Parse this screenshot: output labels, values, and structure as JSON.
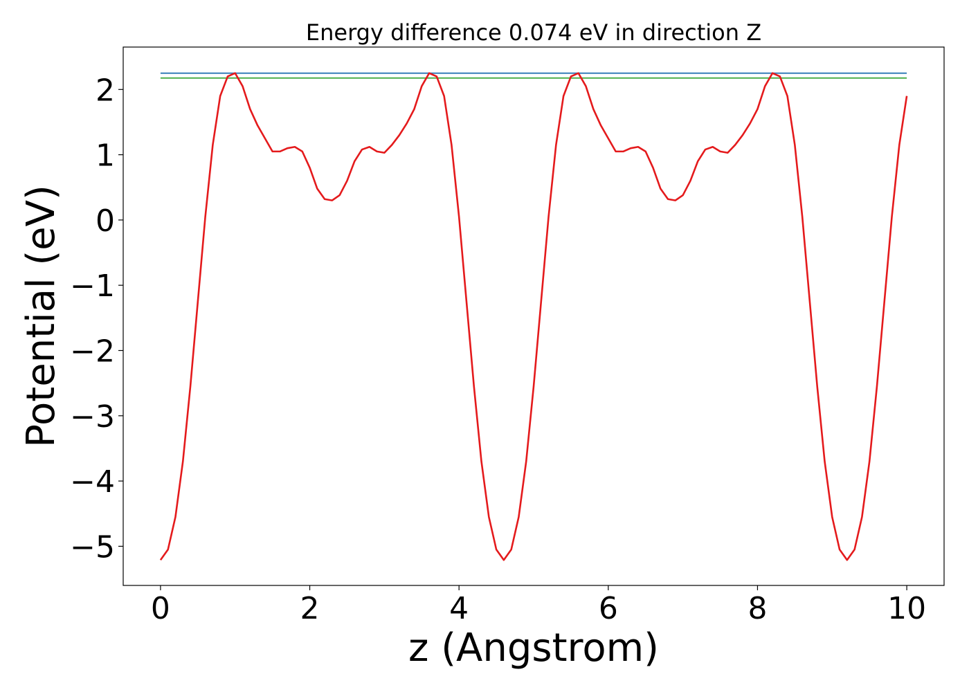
{
  "chart_data": {
    "type": "line",
    "title": "Energy difference 0.074 eV in direction Z",
    "xlabel": "z (Angstrom)",
    "ylabel": "Potential (eV)",
    "xlim": [
      -0.5,
      10.5
    ],
    "ylim": [
      -5.6,
      2.65
    ],
    "xticks": [
      0,
      2,
      4,
      6,
      8,
      10
    ],
    "xtick_labels": [
      "0",
      "2",
      "4",
      "6",
      "8",
      "10"
    ],
    "yticks": [
      2,
      1,
      0,
      -1,
      -2,
      -3,
      -4,
      -5
    ],
    "ytick_labels": [
      "2",
      "1",
      "0",
      "−1",
      "−2",
      "−3",
      "−4",
      "−5"
    ],
    "grid": false,
    "legend": "none",
    "series": [
      {
        "color": "#e41a1c",
        "x": [
          0,
          0.1,
          0.2,
          0.3,
          0.4,
          0.5,
          0.6,
          0.7,
          0.8,
          0.9,
          1.0,
          1.1,
          1.2,
          1.3,
          1.4,
          1.5,
          1.6,
          1.7,
          1.8,
          1.9,
          2.0,
          2.1,
          2.2,
          2.3,
          2.4,
          2.5,
          2.6,
          2.7,
          2.8,
          2.9,
          3.0,
          3.1,
          3.2,
          3.3,
          3.4,
          3.5,
          3.6,
          3.7,
          3.8,
          3.9,
          4.0,
          4.1,
          4.2,
          4.3,
          4.4,
          4.5,
          4.6,
          4.7,
          4.8,
          4.9,
          5.0,
          5.1,
          5.2,
          5.3,
          5.4,
          5.5,
          5.6,
          5.7,
          5.8,
          5.9,
          6.0,
          6.1,
          6.2,
          6.3,
          6.4,
          6.5,
          6.6,
          6.7,
          6.8,
          6.9,
          7.0,
          7.1,
          7.2,
          7.3,
          7.4,
          7.5,
          7.6,
          7.7,
          7.8,
          7.9,
          8.0,
          8.1,
          8.2,
          8.3,
          8.4,
          8.5,
          8.6,
          8.7,
          8.8,
          8.9,
          9.0,
          9.1,
          9.2,
          9.3,
          9.4,
          9.5,
          9.6,
          9.7,
          9.8,
          9.9,
          10.0
        ],
        "y": [
          -5.21,
          -5.05,
          -4.55,
          -3.7,
          -2.55,
          -1.25,
          0.05,
          1.15,
          1.9,
          2.2,
          2.25,
          2.05,
          1.7,
          1.45,
          1.25,
          1.05,
          1.05,
          1.1,
          1.12,
          1.05,
          0.8,
          0.48,
          0.32,
          0.3,
          0.38,
          0.6,
          0.9,
          1.08,
          1.12,
          1.05,
          1.03,
          1.15,
          1.3,
          1.48,
          1.7,
          2.05,
          2.25,
          2.2,
          1.9,
          1.15,
          0.05,
          -1.25,
          -2.55,
          -3.7,
          -4.55,
          -5.05,
          -5.21,
          -5.05,
          -4.55,
          -3.7,
          -2.55,
          -1.25,
          0.05,
          1.15,
          1.9,
          2.2,
          2.25,
          2.05,
          1.7,
          1.45,
          1.25,
          1.05,
          1.05,
          1.1,
          1.12,
          1.05,
          0.8,
          0.48,
          0.32,
          0.3,
          0.38,
          0.6,
          0.9,
          1.08,
          1.12,
          1.05,
          1.03,
          1.15,
          1.3,
          1.48,
          1.7,
          2.05,
          2.25,
          2.2,
          1.9,
          1.15,
          0.05,
          -1.25,
          -2.55,
          -3.7,
          -4.55,
          -5.05,
          -5.21,
          -5.05,
          -4.55,
          -3.7,
          -2.55,
          -1.25,
          0.05,
          1.15,
          1.9
        ]
      },
      {
        "color": "#377eb8",
        "x": [
          0,
          10
        ],
        "y": [
          2.25,
          2.25
        ]
      },
      {
        "color": "#4daf4a",
        "x": [
          0,
          10
        ],
        "y": [
          2.176,
          2.176
        ]
      }
    ]
  }
}
